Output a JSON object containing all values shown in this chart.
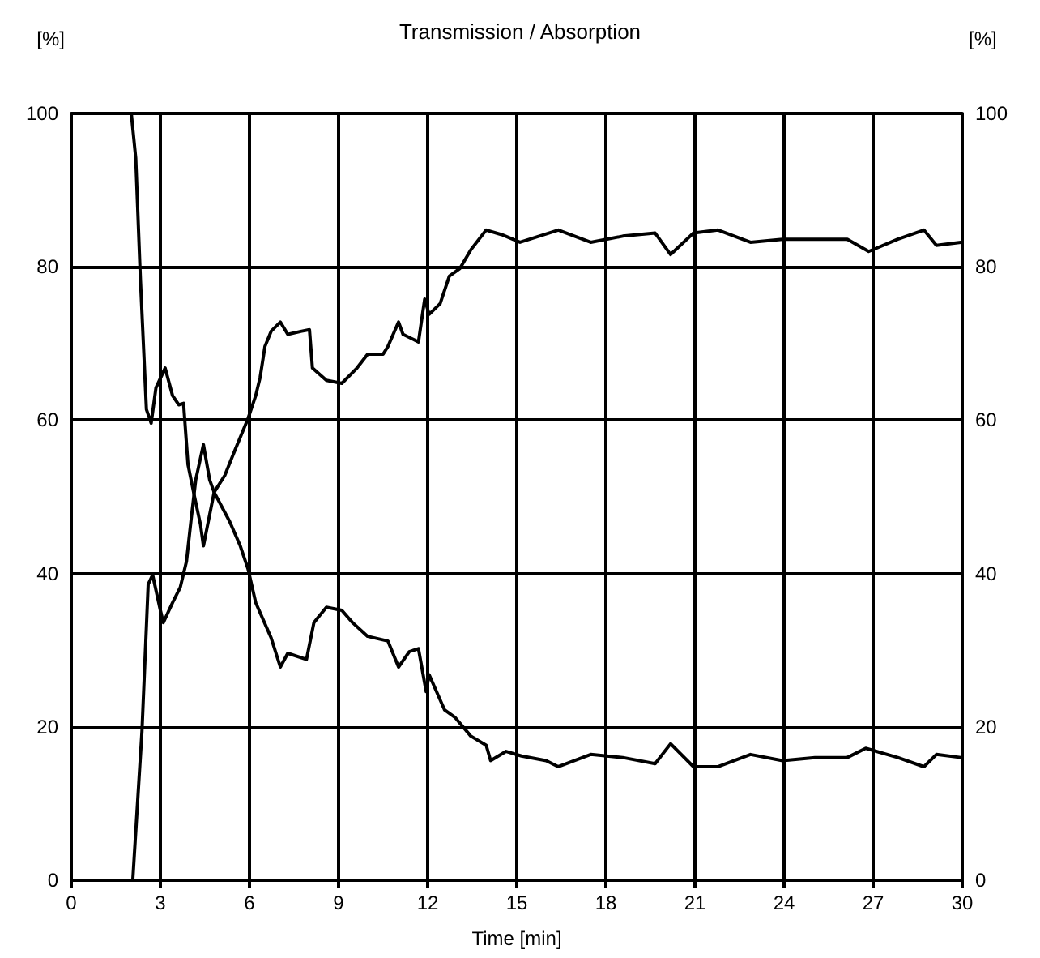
{
  "chart_data": {
    "type": "line",
    "title": "Transmission / Absorption",
    "xlabel": "Time [min]",
    "ylabel": "[%]",
    "y2label": "[%]",
    "xlim": [
      0,
      30
    ],
    "xticks": [
      0,
      3,
      6,
      9,
      12,
      15,
      18,
      21,
      24,
      27,
      30
    ],
    "ylim": [
      0,
      100
    ],
    "yticks": [
      0,
      20,
      40,
      60,
      80,
      100
    ],
    "y2lim": [
      0,
      100
    ],
    "y2ticks": [
      0,
      20,
      40,
      60,
      80,
      100
    ],
    "grid": true,
    "marker": "none",
    "line_style": "solid",
    "series": [
      {
        "color": "#000000",
        "x": [
          2.02,
          2.17,
          2.33,
          2.53,
          2.69,
          2.85,
          3.16,
          3.41,
          3.62,
          3.78,
          3.93,
          4.14,
          4.35,
          4.45,
          4.81,
          5.17,
          5.48,
          5.95,
          6.21,
          6.36,
          6.52,
          6.73,
          7.04,
          7.29,
          7.76,
          8.02,
          8.12,
          8.59,
          9.11,
          9.62,
          9.98,
          10.5,
          10.66,
          11.02,
          11.17,
          11.69,
          11.9,
          12.05,
          12.42,
          12.73,
          13.09,
          13.45,
          13.97,
          14.49,
          15.11,
          16.4,
          17.49,
          18.57,
          19.66,
          20.18,
          20.95,
          21.78,
          22.87,
          23.95,
          25.04,
          26.13,
          26.85,
          27.83,
          28.71,
          29.13,
          29.95
        ],
        "values": [
          100,
          94.2,
          78.2,
          61.4,
          59.6,
          64.2,
          66.8,
          63.2,
          62,
          62.2,
          54.2,
          50.2,
          46.4,
          43.6,
          50.6,
          52.8,
          55.8,
          60.2,
          63.2,
          65.6,
          69.6,
          71.6,
          72.8,
          71.2,
          71.6,
          71.8,
          66.8,
          65.2,
          64.8,
          66.8,
          68.6,
          68.6,
          69.6,
          72.8,
          71.2,
          70.2,
          75.8,
          73.8,
          75.2,
          78.8,
          79.8,
          82.2,
          84.8,
          84.2,
          83.2,
          84.8,
          83.2,
          84,
          84.4,
          81.6,
          84.4,
          84.8,
          83.2,
          83.6,
          83.6,
          83.6,
          82,
          83.6,
          84.8,
          82.8,
          83.2
        ]
      },
      {
        "color": "#000000",
        "x": [
          2.07,
          2.38,
          2.59,
          2.74,
          3.0,
          3.1,
          3.41,
          3.67,
          3.88,
          4.04,
          4.19,
          4.45,
          4.66,
          4.81,
          5.33,
          5.69,
          5.95,
          6.21,
          6.73,
          7.04,
          7.29,
          7.92,
          8.17,
          8.59,
          9.11,
          9.47,
          9.98,
          10.66,
          11.02,
          11.38,
          11.69,
          11.95,
          12.05,
          12.57,
          12.93,
          13.45,
          13.97,
          14.12,
          14.64,
          15.16,
          15.99,
          16.4,
          17.49,
          18.57,
          19.66,
          20.18,
          20.95,
          21.78,
          22.87,
          23.95,
          25.04,
          26.13,
          26.75,
          27.83,
          28.71,
          29.13,
          29.95
        ],
        "values": [
          0,
          19.4,
          38.6,
          39.8,
          35.2,
          33.6,
          36.2,
          38.2,
          41.6,
          47.2,
          52.2,
          56.8,
          52.2,
          50.6,
          46.8,
          43.6,
          40.6,
          36.2,
          31.6,
          27.8,
          29.6,
          28.8,
          33.6,
          35.6,
          35.2,
          33.6,
          31.8,
          31.2,
          27.8,
          29.8,
          30.2,
          24.6,
          26.8,
          22.2,
          21.2,
          18.8,
          17.6,
          15.6,
          16.8,
          16.2,
          15.6,
          14.8,
          16.4,
          16,
          15.2,
          17.8,
          14.8,
          14.8,
          16.4,
          15.6,
          16,
          16,
          17.2,
          16,
          14.8,
          16.4,
          16
        ]
      }
    ]
  }
}
